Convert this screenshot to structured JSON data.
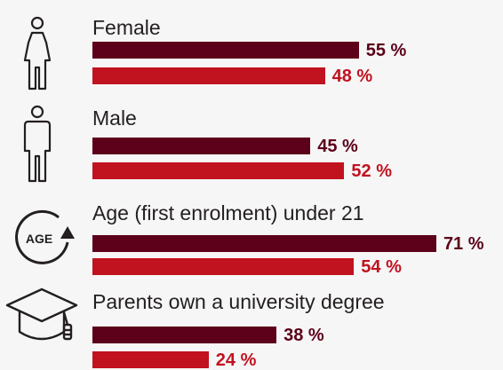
{
  "colors": {
    "series_a": "#5c0119",
    "series_b": "#c1121f",
    "text": "#231f20",
    "icon": "#231f20"
  },
  "chart_data": {
    "type": "bar",
    "orientation": "horizontal",
    "categories": [
      "Female",
      "Male",
      "Age (first enrolment) under 21",
      "Parents own a university degree"
    ],
    "series": [
      {
        "values": [
          55,
          45,
          71,
          38
        ],
        "labels": [
          "55 %",
          "45 %",
          "71 %",
          "38 %"
        ]
      },
      {
        "values": [
          48,
          52,
          54,
          24
        ],
        "labels": [
          "48 %",
          "52 %",
          "54 %",
          "24 %"
        ]
      }
    ],
    "value_suffix": " %"
  },
  "icons": [
    "female-icon",
    "male-icon",
    "age-icon",
    "graduation-cap-icon"
  ],
  "age_icon_text": "AGE"
}
